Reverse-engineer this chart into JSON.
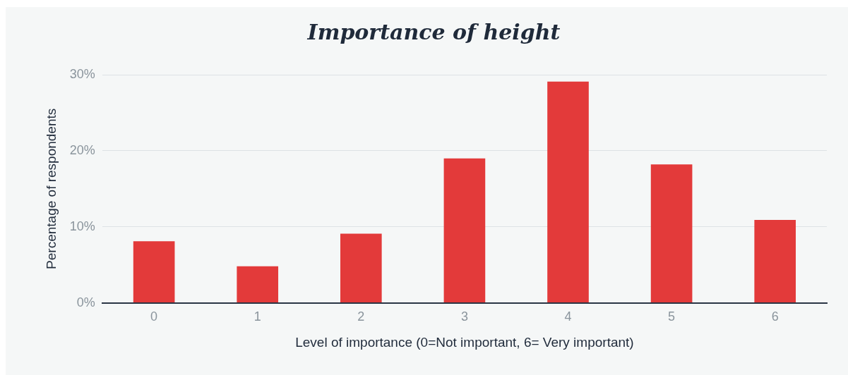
{
  "chart_data": {
    "type": "bar",
    "title": "Importance of height",
    "xlabel": "Level of importance (0=Not important, 6= Very important)",
    "ylabel": "Percentage of respondents",
    "categories": [
      "0",
      "1",
      "2",
      "3",
      "4",
      "5",
      "6"
    ],
    "values": [
      8.1,
      4.8,
      9.1,
      19.0,
      29.1,
      18.2,
      10.9
    ],
    "color": "#e33a3a",
    "ylim": [
      0,
      30
    ],
    "yticks": [
      {
        "value": 0,
        "label": "0%"
      },
      {
        "value": 10,
        "label": "10%"
      },
      {
        "value": 20,
        "label": "20%"
      },
      {
        "value": 30,
        "label": "30%"
      }
    ],
    "grid": "y",
    "legend": false
  }
}
